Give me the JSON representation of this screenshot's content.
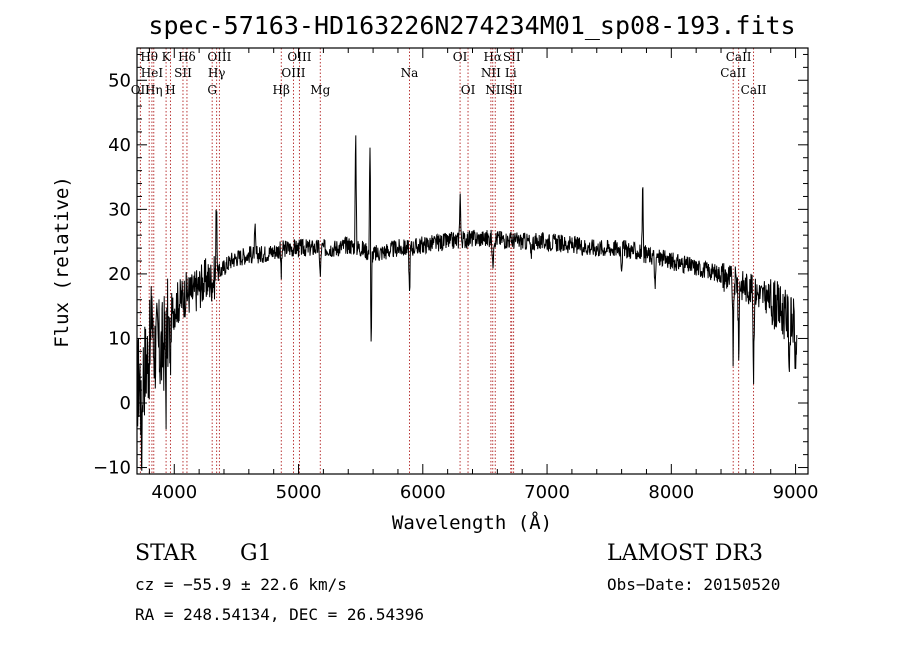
{
  "chart_data": {
    "type": "line",
    "title": "spec-57163-HD163226N274234M01_sp08-193.fits",
    "xlabel": "Wavelength (Å)",
    "ylabel": "Flux (relative)",
    "xlim": [
      3700,
      9100
    ],
    "ylim": [
      -11,
      55
    ],
    "xticks": [
      4000,
      5000,
      6000,
      7000,
      8000,
      9000
    ],
    "yticks": [
      -10,
      0,
      10,
      20,
      30,
      40,
      50
    ],
    "grid": false,
    "continuum": [
      [
        3700,
        3
      ],
      [
        3750,
        5
      ],
      [
        3800,
        8
      ],
      [
        3850,
        9
      ],
      [
        3900,
        8
      ],
      [
        3950,
        12
      ],
      [
        4000,
        15
      ],
      [
        4050,
        16
      ],
      [
        4100,
        17
      ],
      [
        4150,
        17
      ],
      [
        4200,
        18
      ],
      [
        4250,
        19
      ],
      [
        4300,
        19
      ],
      [
        4350,
        20
      ],
      [
        4400,
        21
      ],
      [
        4450,
        22
      ],
      [
        4500,
        22.5
      ],
      [
        4600,
        23
      ],
      [
        4700,
        23
      ],
      [
        4800,
        23.5
      ],
      [
        4900,
        24
      ],
      [
        5000,
        24
      ],
      [
        5100,
        24
      ],
      [
        5200,
        24
      ],
      [
        5300,
        24
      ],
      [
        5400,
        24.5
      ],
      [
        5500,
        24
      ],
      [
        5600,
        23
      ],
      [
        5700,
        23.5
      ],
      [
        5800,
        24
      ],
      [
        5900,
        24
      ],
      [
        6000,
        24.5
      ],
      [
        6200,
        25
      ],
      [
        6400,
        25.5
      ],
      [
        6600,
        25.5
      ],
      [
        6800,
        25
      ],
      [
        7000,
        25
      ],
      [
        7200,
        24.5
      ],
      [
        7400,
        24
      ],
      [
        7600,
        24
      ],
      [
        7800,
        23
      ],
      [
        8000,
        22
      ],
      [
        8200,
        21
      ],
      [
        8400,
        20
      ],
      [
        8500,
        19
      ],
      [
        8600,
        18
      ],
      [
        8700,
        17
      ],
      [
        8800,
        16
      ],
      [
        8900,
        14
      ],
      [
        9000,
        12
      ],
      [
        9100,
        11
      ]
    ],
    "features": [
      {
        "x": 3737,
        "depth": -14
      },
      {
        "x": 3820,
        "depth": 10
      },
      {
        "x": 3933,
        "depth": -9
      },
      {
        "x": 3968,
        "depth": -8
      },
      {
        "x": 4340,
        "depth": 14
      },
      {
        "x": 4650,
        "depth": 4
      },
      {
        "x": 4861,
        "depth": -4
      },
      {
        "x": 5175,
        "depth": -5
      },
      {
        "x": 5460,
        "depth": 18
      },
      {
        "x": 5577,
        "depth": 30
      },
      {
        "x": 5582,
        "depth": -27
      },
      {
        "x": 5893,
        "depth": -7
      },
      {
        "x": 6300,
        "depth": 8
      },
      {
        "x": 6563,
        "depth": -5
      },
      {
        "x": 6870,
        "depth": -3
      },
      {
        "x": 7600,
        "depth": -3
      },
      {
        "x": 7770,
        "depth": 11
      },
      {
        "x": 7870,
        "depth": -6
      },
      {
        "x": 8498,
        "depth": -13
      },
      {
        "x": 8542,
        "depth": -12
      },
      {
        "x": 8662,
        "depth": -13
      },
      {
        "x": 8950,
        "depth": -7
      },
      {
        "x": 9000,
        "depth": -8
      }
    ],
    "emission_lines": [
      {
        "label": "Hθ",
        "x": 3798,
        "row": 1
      },
      {
        "label": "HeI",
        "x": 3820,
        "row": 2
      },
      {
        "label": "OII",
        "x": 3727,
        "row": 3
      },
      {
        "label": "Hη",
        "x": 3835,
        "row": 3
      },
      {
        "label": "K",
        "x": 3934,
        "row": 1
      },
      {
        "label": "SII",
        "x": 4070,
        "row": 2
      },
      {
        "label": "H",
        "x": 3969,
        "row": 3
      },
      {
        "label": "Hδ",
        "x": 4102,
        "row": 1
      },
      {
        "label": "OIII",
        "x": 4363,
        "row": 1
      },
      {
        "label": "Hγ",
        "x": 4341,
        "row": 2
      },
      {
        "label": "G",
        "x": 4305,
        "row": 3
      },
      {
        "label": "Hβ",
        "x": 4861,
        "row": 3
      },
      {
        "label": "OIII",
        "x": 5007,
        "row": 1
      },
      {
        "label": "OIII",
        "x": 4959,
        "row": 2
      },
      {
        "label": "Mg",
        "x": 5175,
        "row": 3
      },
      {
        "label": "Na",
        "x": 5893,
        "row": 2
      },
      {
        "label": "OI",
        "x": 6300,
        "row": 1
      },
      {
        "label": "OI",
        "x": 6364,
        "row": 3
      },
      {
        "label": "Hα",
        "x": 6563,
        "row": 1
      },
      {
        "label": "NII",
        "x": 6548,
        "row": 2
      },
      {
        "label": "NII",
        "x": 6583,
        "row": 3
      },
      {
        "label": "SII",
        "x": 6716,
        "row": 1
      },
      {
        "label": "Li",
        "x": 6708,
        "row": 2
      },
      {
        "label": "SII",
        "x": 6731,
        "row": 3
      },
      {
        "label": "CaII",
        "x": 8542,
        "row": 1
      },
      {
        "label": "CaII",
        "x": 8498,
        "row": 2
      },
      {
        "label": "CaII",
        "x": 8662,
        "row": 3
      }
    ]
  },
  "info": {
    "class_label": "STAR",
    "subclass": "G1",
    "survey": "LAMOST DR3",
    "cz": "cz = −55.9 ± 22.6 km/s",
    "obs_date": "Obs−Date: 20150520",
    "coords": "RA = 248.54134, DEC =  26.54396"
  },
  "colors": {
    "line": "#b22222",
    "spectrum": "#000000",
    "axes": "#000000"
  }
}
